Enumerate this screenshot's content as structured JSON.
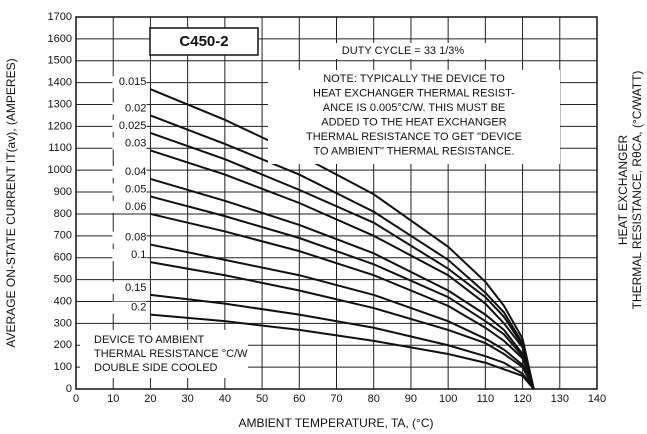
{
  "chart_data": {
    "type": "line",
    "title": "C450-2",
    "subtitle": "DUTY CYCLE = 33 1/3%",
    "xlabel": "AMBIENT TEMPERATURE, TA, (°C)",
    "ylabel": "AVERAGE ON-STATE CURRENT IT(av), (AMPERES)",
    "y2label": [
      "HEAT EXCHANGER",
      "THERMAL RESISTANCE, RθCA, (°C/WATT)"
    ],
    "note": [
      "NOTE: TYPICALLY THE DEVICE TO",
      "HEAT EXCHANGER THERMAL RESIST-",
      "ANCE IS 0.005°C/W.  THIS MUST BE",
      "ADDED TO THE HEAT EXCHANGER",
      "THERMAL RESISTANCE TO GET \"DEVICE",
      "TO AMBIENT\" THERMAL RESISTANCE."
    ],
    "legend_title": [
      "DEVICE TO AMBIENT",
      "THERMAL RESISTANCE °C/W",
      "DOUBLE SIDE COOLED"
    ],
    "x": [
      20,
      40,
      60,
      80,
      100,
      110,
      115,
      120,
      123
    ],
    "series": [
      {
        "name": "0.015",
        "color": "#111111",
        "values": [
          1370,
          1230,
          1070,
          890,
          650,
          490,
          380,
          230,
          0
        ]
      },
      {
        "name": "0.02",
        "color": "#111111",
        "values": [
          1250,
          1120,
          980,
          810,
          590,
          440,
          350,
          210,
          0
        ]
      },
      {
        "name": "0.025",
        "color": "#111111",
        "values": [
          1170,
          1050,
          910,
          760,
          550,
          420,
          330,
          200,
          0
        ]
      },
      {
        "name": "0.03",
        "color": "#111111",
        "values": [
          1090,
          980,
          850,
          700,
          520,
          390,
          300,
          190,
          0
        ]
      },
      {
        "name": "0.04",
        "color": "#111111",
        "values": [
          960,
          860,
          750,
          620,
          450,
          340,
          270,
          160,
          0
        ]
      },
      {
        "name": "0.05",
        "color": "#111111",
        "values": [
          880,
          790,
          690,
          570,
          420,
          310,
          250,
          150,
          0
        ]
      },
      {
        "name": "0.06",
        "color": "#111111",
        "values": [
          800,
          720,
          630,
          520,
          380,
          280,
          220,
          140,
          0
        ]
      },
      {
        "name": "0.08",
        "color": "#111111",
        "values": [
          660,
          590,
          520,
          430,
          310,
          230,
          180,
          110,
          0
        ]
      },
      {
        "name": "0.1",
        "color": "#111111",
        "values": [
          580,
          520,
          450,
          370,
          270,
          210,
          160,
          100,
          0
        ]
      },
      {
        "name": "0.15",
        "color": "#111111",
        "values": [
          430,
          390,
          340,
          280,
          200,
          150,
          120,
          70,
          0
        ]
      },
      {
        "name": "0.2",
        "color": "#111111",
        "values": [
          340,
          310,
          270,
          220,
          160,
          120,
          90,
          60,
          0
        ]
      }
    ],
    "xlim": [
      0,
      140
    ],
    "xticks": [
      0,
      10,
      20,
      30,
      40,
      50,
      60,
      70,
      80,
      90,
      100,
      110,
      120,
      130,
      140
    ],
    "ylim": [
      0,
      1700
    ],
    "yticks": [
      0,
      100,
      200,
      300,
      400,
      500,
      600,
      700,
      800,
      900,
      1000,
      1100,
      1200,
      1300,
      1400,
      1500,
      1600,
      1700
    ],
    "grid": true
  }
}
